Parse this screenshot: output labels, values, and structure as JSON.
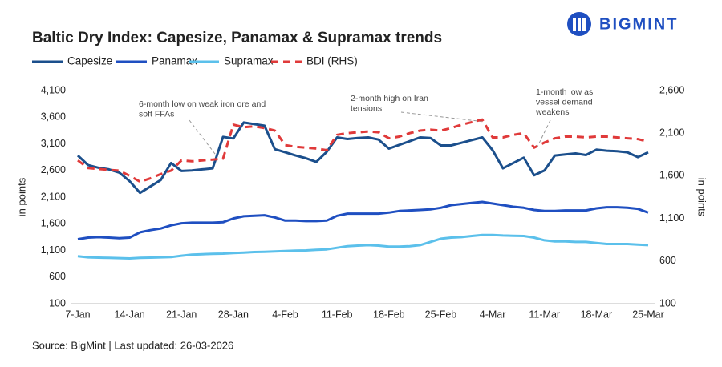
{
  "brand": "BIGMINT",
  "chart_data": {
    "type": "line",
    "title": "Baltic Dry Index: Capesize, Panamax & Supramax trends",
    "ylabel": "in points",
    "y2label": "in points",
    "source": "Source: BigMint | Last updated: 26-03-2026",
    "categories": [
      "7-Jan",
      null,
      null,
      null,
      null,
      "14-Jan",
      null,
      null,
      null,
      null,
      "21-Jan",
      null,
      null,
      null,
      null,
      "28-Jan",
      null,
      null,
      null,
      null,
      "4-Feb",
      null,
      null,
      null,
      null,
      "11-Feb",
      null,
      null,
      null,
      null,
      "18-Feb",
      null,
      null,
      null,
      null,
      "25-Feb",
      null,
      null,
      null,
      null,
      "4-Mar",
      null,
      null,
      null,
      null,
      "11-Mar",
      null,
      null,
      null,
      null,
      "18-Mar",
      null,
      null,
      null,
      null,
      "25-Mar"
    ],
    "series": [
      {
        "name": "Capesize",
        "color": "#1b4f8c",
        "values": [
          2880,
          2700,
          2650,
          2620,
          2560,
          2400,
          2180,
          2300,
          2420,
          2740,
          2590,
          2600,
          2620,
          2640,
          3230,
          3200,
          3500,
          3470,
          3440,
          3000,
          2940,
          2880,
          2830,
          2760,
          2950,
          3220,
          3190,
          3210,
          3220,
          3180,
          3010,
          3080,
          3150,
          3220,
          3210,
          3070,
          3070,
          3120,
          3170,
          3220,
          2980,
          2640,
          2740,
          2840,
          2510,
          2600,
          2880,
          2900,
          2920,
          2890,
          2990,
          2970,
          2960,
          2940,
          2850,
          2940
        ]
      },
      {
        "name": "Panamax",
        "color": "#1f4fc1",
        "values": [
          1310,
          1340,
          1350,
          1340,
          1330,
          1340,
          1440,
          1480,
          1510,
          1570,
          1610,
          1620,
          1620,
          1620,
          1630,
          1700,
          1740,
          1750,
          1760,
          1720,
          1660,
          1660,
          1650,
          1650,
          1660,
          1750,
          1790,
          1790,
          1790,
          1790,
          1810,
          1840,
          1850,
          1860,
          1870,
          1900,
          1950,
          1970,
          1990,
          2010,
          1980,
          1950,
          1920,
          1900,
          1860,
          1840,
          1840,
          1850,
          1850,
          1850,
          1890,
          1910,
          1910,
          1900,
          1880,
          1810
        ]
      },
      {
        "name": "Supramax",
        "color": "#5bc0eb",
        "values": [
          990,
          970,
          965,
          960,
          955,
          950,
          960,
          965,
          970,
          975,
          1000,
          1020,
          1030,
          1035,
          1040,
          1050,
          1060,
          1070,
          1075,
          1080,
          1090,
          1095,
          1100,
          1110,
          1120,
          1150,
          1180,
          1190,
          1200,
          1190,
          1170,
          1170,
          1180,
          1200,
          1260,
          1320,
          1340,
          1350,
          1370,
          1390,
          1390,
          1380,
          1375,
          1370,
          1340,
          1290,
          1270,
          1270,
          1260,
          1260,
          1240,
          1220,
          1220,
          1220,
          1210,
          1200
        ]
      },
      {
        "name": "BDI (RHS)",
        "color": "#e03a3a",
        "dashed": true,
        "axis": "y2",
        "values": [
          1780,
          1690,
          1680,
          1670,
          1660,
          1600,
          1530,
          1570,
          1620,
          1660,
          1780,
          1770,
          1780,
          1790,
          1800,
          2200,
          2170,
          2180,
          2160,
          2130,
          1960,
          1940,
          1930,
          1920,
          1900,
          2080,
          2100,
          2110,
          2120,
          2110,
          2040,
          2060,
          2100,
          2130,
          2140,
          2130,
          2160,
          2200,
          2230,
          2260,
          2050,
          2050,
          2080,
          2100,
          1930,
          1990,
          2040,
          2060,
          2060,
          2050,
          2060,
          2060,
          2050,
          2040,
          2030,
          2000
        ]
      }
    ],
    "ylim": [
      100,
      4100
    ],
    "yticks": [
      100,
      600,
      {
        "value": 1100,
        "label": "1,100"
      },
      {
        "value": 1600,
        "label": "1,600"
      },
      {
        "value": 2100,
        "label": "2,100"
      },
      {
        "value": 2600,
        "label": "2,600"
      },
      {
        "value": 3100,
        "label": "3,100"
      },
      {
        "value": 3600,
        "label": "3,600"
      },
      {
        "value": 4100,
        "label": "4,100"
      }
    ],
    "y2lim": [
      100,
      2600
    ],
    "y2ticks": [
      100,
      600,
      {
        "value": 1100,
        "label": "1,100"
      },
      {
        "value": 1600,
        "label": "1,600"
      },
      {
        "value": 2100,
        "label": "2,100"
      },
      {
        "value": 2600,
        "label": "2,600"
      }
    ],
    "grid": false,
    "annotations": [
      [
        "6-month low on weak iron ore and",
        "soft FFAs"
      ],
      [
        "2-month high on Iran",
        "tensions"
      ],
      [
        "1-month low as",
        "vessel demand",
        "weakens"
      ]
    ]
  }
}
